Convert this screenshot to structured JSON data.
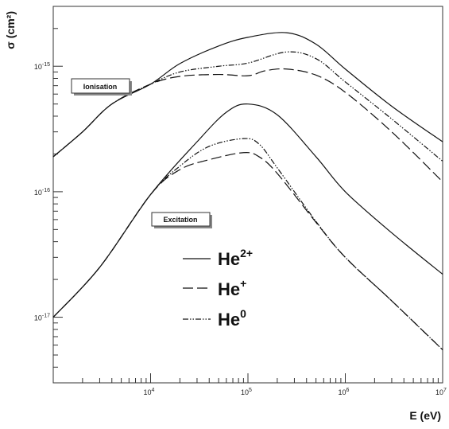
{
  "chart_data": {
    "type": "line",
    "title": "",
    "xlabel": "E (eV)",
    "ylabel": "σ (cm²)",
    "xscale": "log",
    "yscale": "log",
    "xlim": [
      1000,
      10000000
    ],
    "ylim": [
      3e-18,
      3e-15
    ],
    "grid": false,
    "x_ticks": [
      {
        "base": "10",
        "exp": "4",
        "value": 10000
      },
      {
        "base": "10",
        "exp": "5",
        "value": 100000
      },
      {
        "base": "10",
        "exp": "6",
        "value": 1000000
      },
      {
        "base": "10",
        "exp": "7",
        "value": 10000000
      }
    ],
    "y_ticks": [
      {
        "base": "10",
        "exp": "-15",
        "value": 1e-15
      },
      {
        "base": "10",
        "exp": "-16",
        "value": 1e-16
      },
      {
        "base": "10",
        "exp": "-17",
        "value": 1e-17
      }
    ],
    "annotations": [
      {
        "text": "Ionisation",
        "x": 3500,
        "y": 8.3e-16
      },
      {
        "text": "Excitation",
        "x": 17000,
        "y": 6.6e-17
      }
    ],
    "legend": {
      "placement": "center",
      "entries": [
        {
          "base": "He",
          "sup": "2+",
          "style": "solid"
        },
        {
          "base": "He",
          "sup": "+",
          "style": "dashed"
        },
        {
          "base": "He",
          "sup": "0",
          "style": "dashdot"
        }
      ]
    },
    "series": [
      {
        "group": "ionisation",
        "style": "solid",
        "points": [
          [
            1000,
            1.9e-16
          ],
          [
            2000,
            3e-16
          ],
          [
            4000,
            5e-16
          ],
          [
            10000,
            7.2e-16
          ],
          [
            20000,
            1.05e-15
          ],
          [
            50000,
            1.45e-15
          ],
          [
            100000,
            1.7e-15
          ],
          [
            250000,
            1.85e-15
          ],
          [
            500000,
            1.5e-15
          ],
          [
            1000000,
            9.5e-16
          ],
          [
            3000000,
            4.8e-16
          ],
          [
            10000000,
            2.5e-16
          ]
        ]
      },
      {
        "group": "ionisation",
        "style": "dashed",
        "points": [
          [
            1000,
            1.9e-16
          ],
          [
            2000,
            3e-16
          ],
          [
            4000,
            5e-16
          ],
          [
            10000,
            7.2e-16
          ],
          [
            20000,
            8.3e-16
          ],
          [
            50000,
            8.6e-16
          ],
          [
            100000,
            8.4e-16
          ],
          [
            150000,
            9.2e-16
          ],
          [
            250000,
            9.5e-16
          ],
          [
            500000,
            8.5e-16
          ],
          [
            1000000,
            6.2e-16
          ],
          [
            3000000,
            3e-16
          ],
          [
            10000000,
            1.2e-16
          ]
        ]
      },
      {
        "group": "ionisation",
        "style": "dashdot",
        "points": [
          [
            1000,
            1.9e-16
          ],
          [
            2000,
            3e-16
          ],
          [
            4000,
            5e-16
          ],
          [
            10000,
            7.2e-16
          ],
          [
            20000,
            9e-16
          ],
          [
            50000,
            1e-15
          ],
          [
            100000,
            1.06e-15
          ],
          [
            250000,
            1.3e-15
          ],
          [
            500000,
            1.15e-15
          ],
          [
            1000000,
            7.5e-16
          ],
          [
            3000000,
            3.8e-16
          ],
          [
            10000000,
            1.75e-16
          ]
        ]
      },
      {
        "group": "excitation",
        "style": "solid",
        "points": [
          [
            1000,
            1e-17
          ],
          [
            3000,
            2.5e-17
          ],
          [
            10000,
            9.5e-17
          ],
          [
            30000,
            2.5e-16
          ],
          [
            60000,
            4.3e-16
          ],
          [
            100000,
            5e-16
          ],
          [
            200000,
            4.1e-16
          ],
          [
            500000,
            1.9e-16
          ],
          [
            1000000,
            1e-16
          ],
          [
            3000000,
            4.7e-17
          ],
          [
            10000000,
            2.2e-17
          ]
        ]
      },
      {
        "group": "excitation",
        "style": "dashed",
        "points": [
          [
            1000,
            1e-17
          ],
          [
            3000,
            2.5e-17
          ],
          [
            10000,
            9.5e-17
          ],
          [
            20000,
            1.5e-16
          ],
          [
            40000,
            1.8e-16
          ],
          [
            90000,
            2.05e-16
          ],
          [
            130000,
            1.9e-16
          ],
          [
            200000,
            1.4e-16
          ],
          [
            500000,
            5.7e-17
          ],
          [
            1000000,
            3e-17
          ],
          [
            3000000,
            1.35e-17
          ],
          [
            10000000,
            5.5e-18
          ]
        ]
      },
      {
        "group": "excitation",
        "style": "dashdot",
        "points": [
          [
            1000,
            1e-17
          ],
          [
            3000,
            2.5e-17
          ],
          [
            10000,
            9.5e-17
          ],
          [
            20000,
            1.6e-16
          ],
          [
            40000,
            2.3e-16
          ],
          [
            90000,
            2.65e-16
          ],
          [
            130000,
            2.4e-16
          ],
          [
            200000,
            1.55e-16
          ],
          [
            500000,
            5.8e-17
          ],
          [
            1000000,
            3e-17
          ],
          [
            3000000,
            1.35e-17
          ],
          [
            10000000,
            5.5e-18
          ]
        ]
      }
    ]
  }
}
